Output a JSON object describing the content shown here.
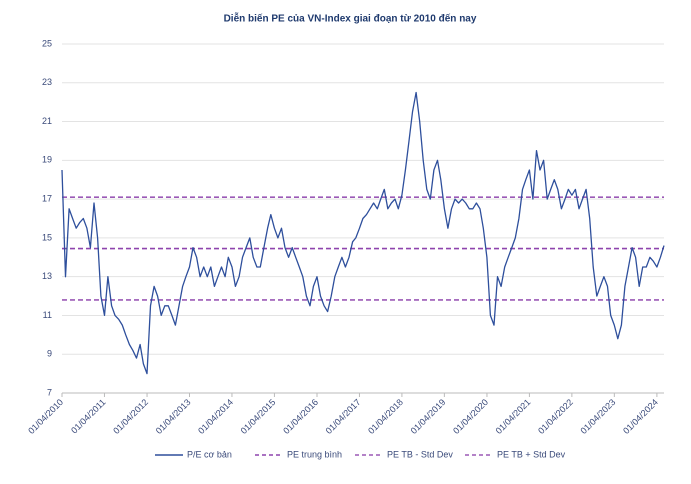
{
  "chart_data": {
    "type": "line",
    "title": "Diễn biến PE của VN-Index giai đoạn từ 2010 đến nay",
    "x": [
      "01/04/2010",
      "01/05/2010",
      "01/06/2010",
      "01/07/2010",
      "01/08/2010",
      "01/09/2010",
      "01/10/2010",
      "01/11/2010",
      "01/12/2010",
      "01/01/2011",
      "01/02/2011",
      "01/03/2011",
      "01/04/2011",
      "01/05/2011",
      "01/06/2011",
      "01/07/2011",
      "01/08/2011",
      "01/09/2011",
      "01/10/2011",
      "01/11/2011",
      "01/12/2011",
      "01/01/2012",
      "01/02/2012",
      "01/03/2012",
      "01/04/2012",
      "01/05/2012",
      "01/06/2012",
      "01/07/2012",
      "01/08/2012",
      "01/09/2012",
      "01/10/2012",
      "01/11/2012",
      "01/12/2012",
      "01/01/2013",
      "01/02/2013",
      "01/03/2013",
      "01/04/2013",
      "01/05/2013",
      "01/06/2013",
      "01/07/2013",
      "01/08/2013",
      "01/09/2013",
      "01/10/2013",
      "01/11/2013",
      "01/12/2013",
      "01/01/2014",
      "01/02/2014",
      "01/03/2014",
      "01/04/2014",
      "01/05/2014",
      "01/06/2014",
      "01/07/2014",
      "01/08/2014",
      "01/09/2014",
      "01/10/2014",
      "01/11/2014",
      "01/12/2014",
      "01/01/2015",
      "01/02/2015",
      "01/03/2015",
      "01/04/2015",
      "01/05/2015",
      "01/06/2015",
      "01/07/2015",
      "01/08/2015",
      "01/09/2015",
      "01/10/2015",
      "01/11/2015",
      "01/12/2015",
      "01/01/2016",
      "01/02/2016",
      "01/03/2016",
      "01/04/2016",
      "01/05/2016",
      "01/06/2016",
      "01/07/2016",
      "01/08/2016",
      "01/09/2016",
      "01/10/2016",
      "01/11/2016",
      "01/12/2016",
      "01/01/2017",
      "01/02/2017",
      "01/03/2017",
      "01/04/2017",
      "01/05/2017",
      "01/06/2017",
      "01/07/2017",
      "01/08/2017",
      "01/09/2017",
      "01/10/2017",
      "01/11/2017",
      "01/12/2017",
      "01/01/2018",
      "01/02/2018",
      "01/03/2018",
      "01/04/2018",
      "01/05/2018",
      "01/06/2018",
      "01/07/2018",
      "01/08/2018",
      "01/09/2018",
      "01/10/2018",
      "01/11/2018",
      "01/12/2018",
      "01/01/2019",
      "01/02/2019",
      "01/03/2019",
      "01/04/2019",
      "01/05/2019",
      "01/06/2019",
      "01/07/2019",
      "01/08/2019",
      "01/09/2019",
      "01/10/2019",
      "01/11/2019",
      "01/12/2019",
      "01/01/2020",
      "01/02/2020",
      "01/03/2020",
      "01/04/2020",
      "01/05/2020",
      "01/06/2020",
      "01/07/2020",
      "01/08/2020",
      "01/09/2020",
      "01/10/2020",
      "01/11/2020",
      "01/12/2020",
      "01/01/2021",
      "01/02/2021",
      "01/03/2021",
      "01/04/2021",
      "01/05/2021",
      "01/06/2021",
      "01/07/2021",
      "01/08/2021",
      "01/09/2021",
      "01/10/2021",
      "01/11/2021",
      "01/12/2021",
      "01/01/2022",
      "01/02/2022",
      "01/03/2022",
      "01/04/2022",
      "01/05/2022",
      "01/06/2022",
      "01/07/2022",
      "01/08/2022",
      "01/09/2022",
      "01/10/2022",
      "01/11/2022",
      "01/12/2022",
      "01/01/2023",
      "01/02/2023",
      "01/03/2023",
      "01/04/2023",
      "01/05/2023",
      "01/06/2023",
      "01/07/2023",
      "01/08/2023",
      "01/09/2023",
      "01/10/2023",
      "01/11/2023",
      "01/12/2023",
      "01/01/2024",
      "01/02/2024",
      "01/03/2024",
      "01/04/2024",
      "01/05/2024",
      "01/06/2024"
    ],
    "series": [
      {
        "name": "P/E cơ bản",
        "color": "#2e4f9c",
        "values": [
          18.5,
          13,
          16.5,
          16,
          15.5,
          15.8,
          16,
          15.5,
          14.5,
          16.8,
          15,
          12,
          11,
          13,
          11.5,
          11,
          10.8,
          10.5,
          10,
          9.5,
          9.2,
          8.8,
          9.5,
          8.5,
          8,
          11.5,
          12.5,
          12,
          11,
          11.5,
          11.5,
          11,
          10.5,
          11.5,
          12.5,
          13,
          13.5,
          14.5,
          14,
          13,
          13.5,
          13,
          13.5,
          12.5,
          13,
          13.5,
          13,
          14,
          13.5,
          12.5,
          13,
          14,
          14.5,
          15,
          14,
          13.5,
          13.5,
          14.5,
          15.5,
          16.2,
          15.5,
          15,
          15.5,
          14.5,
          14,
          14.5,
          14,
          13.5,
          13,
          12,
          11.5,
          12.5,
          13,
          12,
          11.5,
          11.2,
          12,
          13,
          13.5,
          14,
          13.5,
          14,
          14.8,
          15,
          15.5,
          16,
          16.2,
          16.5,
          16.8,
          16.5,
          17,
          17.5,
          16.5,
          16.8,
          17,
          16.5,
          17.2,
          18.5,
          20,
          21.5,
          22.5,
          21,
          19,
          17.5,
          17,
          18.5,
          19,
          18,
          16.5,
          15.5,
          16.5,
          17,
          16.8,
          17,
          16.8,
          16.5,
          16.5,
          16.8,
          16.5,
          15.5,
          14,
          11,
          10.5,
          13,
          12.5,
          13.5,
          14,
          14.5,
          15,
          16,
          17.5,
          18,
          18.5,
          17,
          19.5,
          18.5,
          19,
          17,
          17.5,
          18,
          17.5,
          16.5,
          17,
          17.5,
          17.2,
          17.5,
          16.5,
          17,
          17.5,
          16,
          13.5,
          12,
          12.5,
          13,
          12.5,
          11,
          10.5,
          9.8,
          10.5,
          12.5,
          13.5,
          14.5,
          14,
          12.5,
          13.5,
          13.5,
          14,
          13.8,
          13.5,
          14,
          14.6
        ]
      }
    ],
    "hlines": [
      {
        "name": "PE trung bình",
        "value": 14.45,
        "color": "#8e44ad"
      },
      {
        "name": "PE TB - Std Dev",
        "value": 11.8,
        "color": "#9b59b6"
      },
      {
        "name": "PE TB + Std Dev",
        "value": 17.1,
        "color": "#9b59b6"
      }
    ],
    "xlim": [
      "01/04/2010",
      "01/06/2024"
    ],
    "xticks": [
      "01/04/2010",
      "01/04/2011",
      "01/04/2012",
      "01/04/2013",
      "01/04/2014",
      "01/04/2015",
      "01/04/2016",
      "01/04/2017",
      "01/04/2018",
      "01/04/2019",
      "01/04/2020",
      "01/04/2021",
      "01/04/2022",
      "01/04/2023",
      "01/04/2024"
    ],
    "ylim": [
      7,
      25
    ],
    "yticks": [
      7,
      9,
      11,
      13,
      15,
      17,
      19,
      21,
      23,
      25
    ],
    "grid": true
  }
}
